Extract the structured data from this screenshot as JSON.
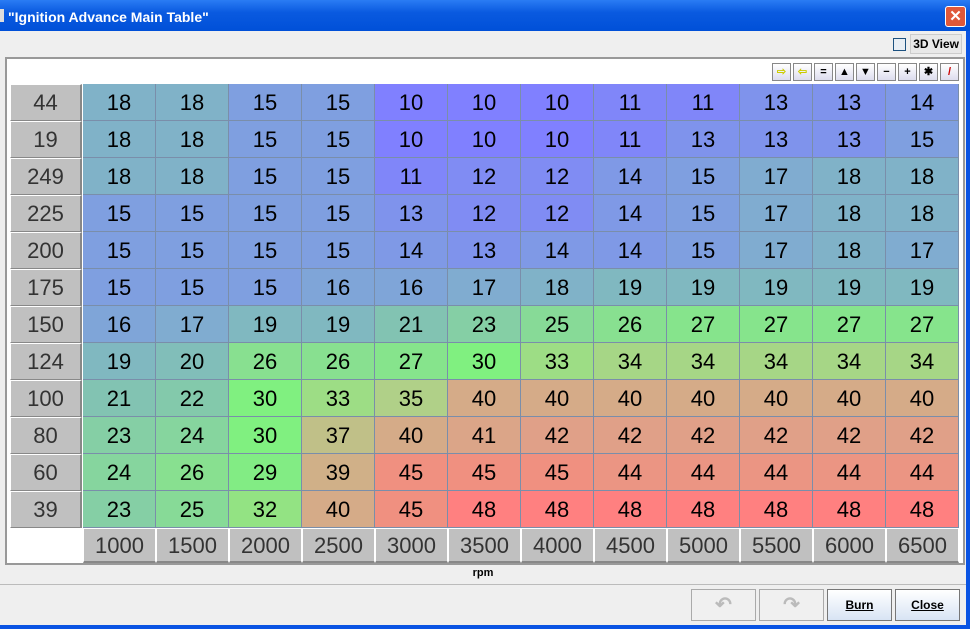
{
  "window": {
    "title": "\"Ignition Advance Main Table\"",
    "close_icon": "close-icon"
  },
  "view3d": {
    "label": "3D View",
    "checked": false
  },
  "toolbar": [
    "arrow-right-icon",
    "arrow-left-icon",
    "equals-icon",
    "triangle-up-icon",
    "triangle-down-icon",
    "minus-icon",
    "plus-icon",
    "multiply-icon",
    "pencil-icon"
  ],
  "toolbar_glyphs": [
    "⇨",
    "⇦",
    "=",
    "▲",
    "▼",
    "−",
    "+",
    "✱",
    "/"
  ],
  "table": {
    "y_axis": [
      "44",
      "19",
      "249",
      "225",
      "200",
      "175",
      "150",
      "124",
      "100",
      "80",
      "60",
      "39"
    ],
    "x_axis": [
      "1000",
      "1500",
      "2000",
      "2500",
      "3000",
      "3500",
      "4000",
      "4500",
      "5000",
      "5500",
      "6000",
      "6500"
    ],
    "x_label": "rpm",
    "rows": [
      [
        18,
        18,
        15,
        15,
        10,
        10,
        10,
        11,
        11,
        13,
        13,
        14
      ],
      [
        18,
        18,
        15,
        15,
        10,
        10,
        10,
        11,
        13,
        13,
        13,
        15
      ],
      [
        18,
        18,
        15,
        15,
        11,
        12,
        12,
        14,
        15,
        17,
        18,
        18
      ],
      [
        15,
        15,
        15,
        15,
        13,
        12,
        12,
        14,
        15,
        17,
        18,
        18
      ],
      [
        15,
        15,
        15,
        15,
        14,
        13,
        14,
        14,
        15,
        17,
        18,
        17
      ],
      [
        15,
        15,
        15,
        16,
        16,
        17,
        18,
        19,
        19,
        19,
        19,
        19
      ],
      [
        16,
        17,
        19,
        19,
        21,
        23,
        25,
        26,
        27,
        27,
        27,
        27
      ],
      [
        19,
        20,
        26,
        26,
        27,
        30,
        33,
        34,
        34,
        34,
        34,
        34
      ],
      [
        21,
        22,
        30,
        33,
        35,
        40,
        40,
        40,
        40,
        40,
        40,
        40
      ],
      [
        23,
        24,
        30,
        37,
        40,
        41,
        42,
        42,
        42,
        42,
        42,
        42
      ],
      [
        24,
        26,
        29,
        39,
        45,
        45,
        45,
        44,
        44,
        44,
        44,
        44
      ],
      [
        23,
        25,
        32,
        40,
        45,
        48,
        48,
        48,
        48,
        48,
        48,
        48
      ]
    ],
    "color_scale": [
      [
        10,
        "#8080ff"
      ],
      [
        15,
        "#7f9fe0"
      ],
      [
        19,
        "#80b8c0"
      ],
      [
        26,
        "#88e090"
      ],
      [
        30,
        "#80f080"
      ],
      [
        35,
        "#b0d088"
      ],
      [
        39,
        "#d0b088"
      ],
      [
        42,
        "#e0a088"
      ],
      [
        45,
        "#f09080"
      ],
      [
        48,
        "#ff8080"
      ]
    ]
  },
  "buttons": {
    "undo_icon": "undo-icon",
    "redo_icon": "redo-icon",
    "burn": "Burn",
    "close": "Close"
  }
}
